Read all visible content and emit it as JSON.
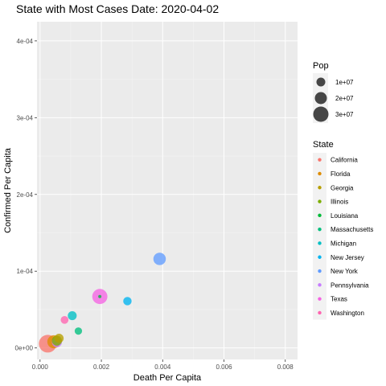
{
  "chart_data": {
    "type": "scatter",
    "title": "State with Most Cases Date: 2020-04-02",
    "xlabel": "Death Per Capita",
    "ylabel": "Confirmed Per Capita",
    "xlim": [
      -0.0001,
      0.0084
    ],
    "ylim": [
      -1.5e-05,
      0.000425
    ],
    "x_ticks": [
      0,
      0.002,
      0.004,
      0.006,
      0.008
    ],
    "x_tick_labels": [
      "0.000",
      "0.002",
      "0.004",
      "0.006",
      "0.008"
    ],
    "y_ticks": [
      0,
      0.0001,
      0.0002,
      0.0003,
      0.0004
    ],
    "y_tick_labels": [
      "0e+00",
      "1e-04",
      "2e-04",
      "3e-04",
      "4e-04"
    ],
    "grid": true,
    "size_legend": {
      "title": "Pop",
      "entries": [
        {
          "label": "1e+07",
          "value": 10000000
        },
        {
          "label": "2e+07",
          "value": 20000000
        },
        {
          "label": "3e+07",
          "value": 30000000
        }
      ]
    },
    "color_legend": {
      "title": "State",
      "placement": "right"
    },
    "series": [
      {
        "name": "California",
        "color": "#F8766D",
        "x": 0.00025,
        "y": 5.5e-06,
        "pop": 39500000
      },
      {
        "name": "Florida",
        "color": "#DE8C00",
        "x": 0.00045,
        "y": 8e-06,
        "pop": 21500000
      },
      {
        "name": "Georgia",
        "color": "#B79F00",
        "x": 0.00062,
        "y": 1.25e-05,
        "pop": 10600000
      },
      {
        "name": "Illinois",
        "color": "#7CAE00",
        "x": 0.00055,
        "y": 9.5e-06,
        "pop": 12700000
      },
      {
        "name": "Louisiana",
        "color": "#00BA38",
        "x": 0.00195,
        "y": 6.7e-05,
        "pop": 4600000
      },
      {
        "name": "Massachusetts",
        "color": "#00BF7D",
        "x": 0.00125,
        "y": 2.2e-05,
        "pop": 6900000
      },
      {
        "name": "Michigan",
        "color": "#00BFC4",
        "x": 0.00105,
        "y": 4.2e-05,
        "pop": 10000000
      },
      {
        "name": "New Jersey",
        "color": "#00B4F0",
        "x": 0.00285,
        "y": 6.1e-05,
        "pop": 8900000
      },
      {
        "name": "New York",
        "color": "#619CFF",
        "x": 0.0039,
        "y": 0.000116,
        "pop": 19500000
      },
      {
        "name": "Pennsylvania",
        "color": "#C77CFF",
        "x": 0.00055,
        "y": 7.5e-06,
        "pop": 12800000
      },
      {
        "name": "Texas",
        "color": "#F564E3",
        "x": 0.00195,
        "y": 6.7e-05,
        "pop": 29000000
      },
      {
        "name": "Washington",
        "color": "#FF64B0",
        "x": 0.0008,
        "y": 3.65e-05,
        "pop": 7600000
      }
    ]
  }
}
